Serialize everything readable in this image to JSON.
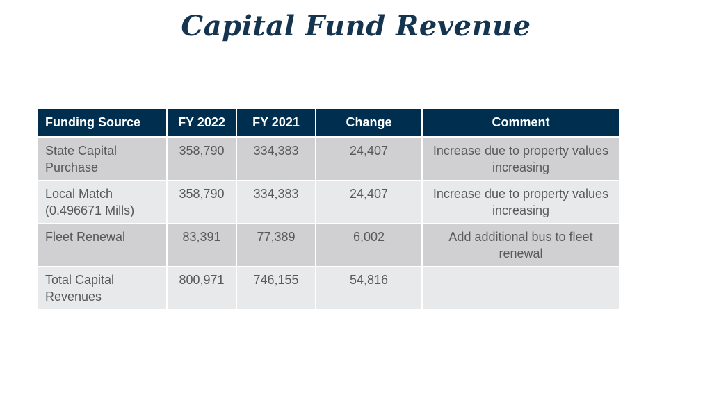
{
  "title": "Capital Fund Revenue",
  "table": {
    "headers": [
      "Funding Source",
      "FY 2022",
      "FY 2021",
      "Change",
      "Comment"
    ],
    "rows": [
      [
        "State Capital Purchase",
        "358,790",
        "334,383",
        "24,407",
        "Increase due to property values increasing"
      ],
      [
        "Local Match (0.496671 Mills)",
        "358,790",
        "334,383",
        "24,407",
        "Increase due to property values increasing"
      ],
      [
        "Fleet Renewal",
        "83,391",
        "77,389",
        "6,002",
        "Add additional bus to fleet renewal"
      ],
      [
        "Total Capital Revenues",
        "800,971",
        "746,155",
        "54,816",
        ""
      ]
    ]
  },
  "colors": {
    "header_bg": "#002e4f",
    "title": "#14344f",
    "row_dark": "#d0d0d2",
    "row_light": "#e8e9ea"
  }
}
